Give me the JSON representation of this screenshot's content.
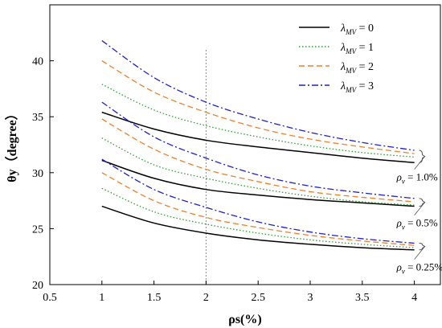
{
  "chart_data": {
    "type": "line",
    "xlabel": "ρs(%)",
    "ylabel": "θy（degree）",
    "xlim": [
      0.5,
      4.25
    ],
    "ylim": [
      20,
      45
    ],
    "xticks": [
      0.5,
      1,
      1.5,
      2,
      2.5,
      3,
      3.5,
      4
    ],
    "xtick_labels": [
      "0.5",
      "1",
      "1.5",
      "2",
      "2.5",
      "3",
      "3.5",
      "4"
    ],
    "yticks": [
      20,
      25,
      30,
      35,
      40
    ],
    "ytick_labels": [
      "20",
      "25",
      "30",
      "35",
      "40"
    ],
    "grid": false,
    "legend_position": "top-right",
    "reference_line": {
      "x": 2,
      "style": "dotted",
      "color": "#888888"
    },
    "legend": [
      {
        "label_main": "λ",
        "label_sub": "MV",
        "label_rest": " = 0",
        "color": "#000000",
        "dash": "solid"
      },
      {
        "label_main": "λ",
        "label_sub": "MV",
        "label_rest": " = 1",
        "color": "#2ca02c",
        "dash": "dotted"
      },
      {
        "label_main": "λ",
        "label_sub": "MV",
        "label_rest": " = 2",
        "color": "#f07f2a",
        "dash": "dashed"
      },
      {
        "label_main": "λ",
        "label_sub": "MV",
        "label_rest": " = 3",
        "color": "#1f1fd1",
        "dash": "dashdot"
      }
    ],
    "groups": [
      {
        "label_main": "ρ",
        "label_sub": "v",
        "label_rest": " = 1.0%"
      },
      {
        "label_main": "ρ",
        "label_sub": "v",
        "label_rest": " = 0.5%"
      },
      {
        "label_main": "ρ",
        "label_sub": "v",
        "label_rest": " = 0.25%"
      }
    ],
    "x": [
      1,
      1.5,
      2,
      2.5,
      3,
      3.5,
      4
    ],
    "series": [
      {
        "lambda": 0,
        "group": 0,
        "values": [
          35.4,
          33.9,
          32.9,
          32.3,
          31.8,
          31.3,
          30.9
        ]
      },
      {
        "lambda": 1,
        "group": 0,
        "values": [
          37.9,
          35.6,
          34.2,
          33.2,
          32.4,
          31.8,
          31.4
        ]
      },
      {
        "lambda": 2,
        "group": 0,
        "values": [
          40.0,
          37.2,
          35.4,
          34.0,
          33.0,
          32.3,
          31.7
        ]
      },
      {
        "lambda": 3,
        "group": 0,
        "values": [
          41.8,
          38.5,
          36.3,
          34.8,
          33.6,
          32.7,
          32.0
        ]
      },
      {
        "lambda": 0,
        "group": 1,
        "values": [
          31.1,
          29.5,
          28.5,
          28.0,
          27.6,
          27.3,
          27.0
        ]
      },
      {
        "lambda": 1,
        "group": 1,
        "values": [
          33.1,
          30.7,
          29.5,
          28.6,
          27.9,
          27.4,
          27.1
        ]
      },
      {
        "lambda": 2,
        "group": 1,
        "values": [
          34.8,
          32.1,
          30.3,
          29.2,
          28.3,
          27.8,
          27.4
        ]
      },
      {
        "lambda": 3,
        "group": 1,
        "values": [
          36.3,
          33.2,
          31.3,
          29.8,
          28.8,
          28.2,
          27.7
        ]
      },
      {
        "lambda": 0,
        "group": 2,
        "values": [
          27.0,
          25.5,
          24.6,
          24.0,
          23.6,
          23.3,
          23.1
        ]
      },
      {
        "lambda": 1,
        "group": 2,
        "values": [
          28.6,
          26.5,
          25.4,
          24.6,
          24.0,
          23.6,
          23.3
        ]
      },
      {
        "lambda": 2,
        "group": 2,
        "values": [
          30.0,
          27.5,
          26.0,
          25.1,
          24.4,
          23.9,
          23.5
        ]
      },
      {
        "lambda": 3,
        "group": 2,
        "values": [
          31.2,
          28.5,
          26.9,
          25.6,
          24.7,
          24.1,
          23.7
        ]
      }
    ]
  }
}
